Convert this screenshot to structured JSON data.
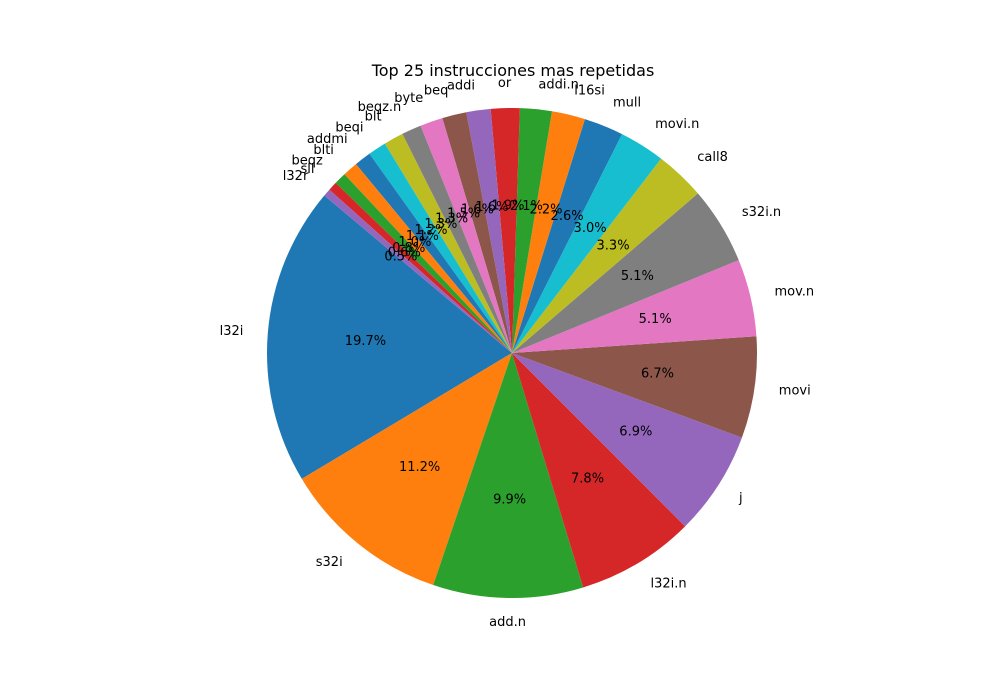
{
  "chart_data": {
    "type": "pie",
    "title": "Top 25 instrucciones mas repetidas",
    "start_angle_deg": 140,
    "direction": "counterclockwise",
    "slices": [
      {
        "label": "l32i",
        "value": 19.7,
        "pct_text": "19.7%",
        "color": "#1f77b4"
      },
      {
        "label": "s32i",
        "value": 11.2,
        "pct_text": "11.2%",
        "color": "#ff7f0e"
      },
      {
        "label": "add.n",
        "value": 9.9,
        "pct_text": "9.9%",
        "color": "#2ca02c"
      },
      {
        "label": "l32i.n",
        "value": 7.8,
        "pct_text": "7.8%",
        "color": "#d62728"
      },
      {
        "label": "j",
        "value": 6.9,
        "pct_text": "6.9%",
        "color": "#9467bd"
      },
      {
        "label": "movi",
        "value": 6.7,
        "pct_text": "6.7%",
        "color": "#8c564b"
      },
      {
        "label": "mov.n",
        "value": 5.1,
        "pct_text": "5.1%",
        "color": "#e377c2"
      },
      {
        "label": "s32i.n",
        "value": 5.1,
        "pct_text": "5.1%",
        "color": "#7f7f7f"
      },
      {
        "label": "call8",
        "value": 3.3,
        "pct_text": "3.3%",
        "color": "#bcbd22"
      },
      {
        "label": "movi.n",
        "value": 3.0,
        "pct_text": "3.0%",
        "color": "#17becf"
      },
      {
        "label": "mull",
        "value": 2.6,
        "pct_text": "2.6%",
        "color": "#1f77b4"
      },
      {
        "label": "l16si",
        "value": 2.2,
        "pct_text": "2.2%",
        "color": "#ff7f0e"
      },
      {
        "label": "addi.n",
        "value": 2.1,
        "pct_text": "2.1%",
        "color": "#2ca02c"
      },
      {
        "label": "or",
        "value": 1.9,
        "pct_text": "1.9%",
        "color": "#d62728"
      },
      {
        "label": "addi",
        "value": 1.6,
        "pct_text": "1.6%",
        "color": "#9467bd"
      },
      {
        "label": "beq",
        "value": 1.6,
        "pct_text": "1.6%",
        "color": "#8c564b"
      },
      {
        "label": "byte",
        "value": 1.5,
        "pct_text": "1.5%",
        "color": "#e377c2"
      },
      {
        "label": "beqz.n",
        "value": 1.3,
        "pct_text": "1.3%",
        "color": "#7f7f7f"
      },
      {
        "label": "blt",
        "value": 1.3,
        "pct_text": "1.3%",
        "color": "#bcbd22"
      },
      {
        "label": "beqi",
        "value": 1.2,
        "pct_text": "1.2%",
        "color": "#17becf"
      },
      {
        "label": "addmi",
        "value": 1.1,
        "pct_text": "1.1%",
        "color": "#1f77b4"
      },
      {
        "label": "blti",
        "value": 1.0,
        "pct_text": "1.0%",
        "color": "#ff7f0e"
      },
      {
        "label": "beqz",
        "value": 0.8,
        "pct_text": "0.8%",
        "color": "#2ca02c"
      },
      {
        "label": "sll",
        "value": 0.6,
        "pct_text": "0.6%",
        "color": "#d62728"
      },
      {
        "label": "l32r",
        "value": 0.5,
        "pct_text": "0.5%",
        "color": "#9467bd"
      }
    ]
  }
}
